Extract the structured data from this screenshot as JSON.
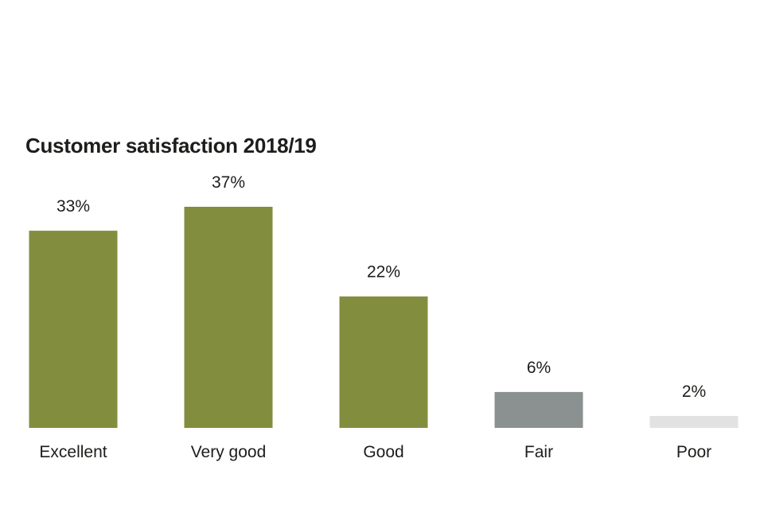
{
  "chart_data": {
    "type": "bar",
    "title": "Customer satisfaction 2018/19",
    "categories": [
      "Excellent",
      "Very good",
      "Good",
      "Fair",
      "Poor"
    ],
    "values": [
      33,
      37,
      22,
      6,
      2
    ],
    "value_labels": [
      "33%",
      "37%",
      "22%",
      "6%",
      "2%"
    ],
    "colors": [
      "#838d3e",
      "#838d3e",
      "#838d3e",
      "#8b9190",
      "#e2e2e2"
    ],
    "xlabel": "",
    "ylabel": "",
    "ylim": [
      0,
      37
    ],
    "grid": false,
    "legend": "none"
  }
}
